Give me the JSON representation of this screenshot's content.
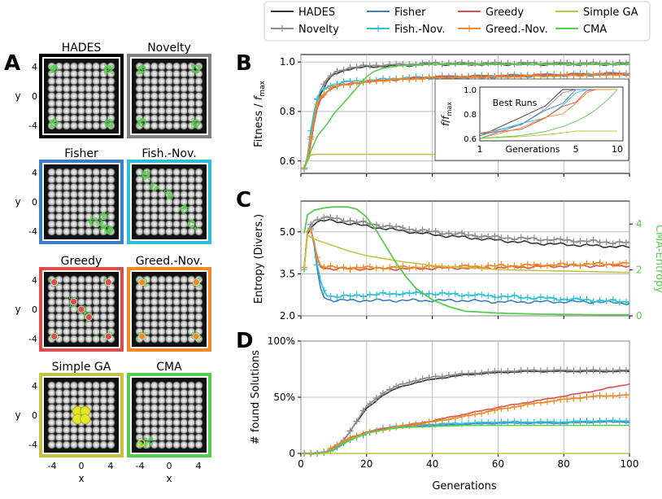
{
  "panel_letters": {
    "a": "A",
    "b": "B",
    "c": "C",
    "d": "D"
  },
  "legend": [
    {
      "name": "HADES",
      "color": "#333333",
      "marker": "none"
    },
    {
      "name": "Novelty",
      "color": "#8c8c8c",
      "marker": "plus"
    },
    {
      "name": "Fisher",
      "color": "#3d7fc1",
      "marker": "none"
    },
    {
      "name": "Fish.-Nov.",
      "color": "#2ec0d6",
      "marker": "plus"
    },
    {
      "name": "Greedy",
      "color": "#d9504e",
      "marker": "none"
    },
    {
      "name": "Greed.-Nov.",
      "color": "#f08a26",
      "marker": "plus"
    },
    {
      "name": "Simple GA",
      "color": "#c5c244",
      "marker": "none"
    },
    {
      "name": "CMA",
      "color": "#58cc4f",
      "marker": "none"
    }
  ],
  "heatmaps": {
    "tiles": [
      {
        "title": "HADES",
        "border": "#000000",
        "clusters": "corners"
      },
      {
        "title": "Novelty",
        "border": "#808080",
        "clusters": "corners"
      },
      {
        "title": "Fisher",
        "border": "#3d7fc1",
        "clusters": "br-path"
      },
      {
        "title": "Fish.-Nov.",
        "border": "#2ec0d6",
        "clusters": "diag"
      },
      {
        "title": "Greedy",
        "border": "#d9504e",
        "clusters": "scatter"
      },
      {
        "title": "Greed.-Nov.",
        "border": "#f08a26",
        "clusters": "corners"
      },
      {
        "title": "Simple GA",
        "border": "#c5c244",
        "clusters": "center"
      },
      {
        "title": "CMA",
        "border": "#58cc4f",
        "clusters": "bl"
      }
    ],
    "xlabel": "x",
    "ylabel": "y",
    "ticks": [
      "4",
      "0",
      "-4"
    ],
    "xticks": [
      "-4",
      "0",
      "4"
    ]
  },
  "chart_data": [
    {
      "type": "line",
      "panel": "B",
      "ylabel": "Fitness / f_max",
      "xlim": [
        0,
        100
      ],
      "ylim": [
        0.55,
        1.03
      ],
      "yticks": [
        0.6,
        0.8,
        1.0
      ],
      "series": [
        {
          "name": "HADES",
          "x": [
            1,
            2,
            3,
            4,
            5,
            6,
            8,
            10,
            14,
            20,
            30,
            40,
            60,
            80,
            100
          ],
          "values": [
            0.57,
            0.6,
            0.68,
            0.76,
            0.82,
            0.87,
            0.92,
            0.95,
            0.97,
            0.98,
            0.985,
            0.99,
            0.99,
            0.99,
            0.99
          ]
        },
        {
          "name": "Novelty",
          "x": [
            1,
            2,
            3,
            4,
            5,
            6,
            8,
            10,
            14,
            20,
            30,
            40,
            60,
            80,
            100
          ],
          "values": [
            0.57,
            0.61,
            0.7,
            0.79,
            0.85,
            0.89,
            0.93,
            0.955,
            0.975,
            0.985,
            0.99,
            0.995,
            0.995,
            0.995,
            0.995
          ]
        },
        {
          "name": "Fisher",
          "x": [
            1,
            2,
            3,
            4,
            5,
            6,
            8,
            10,
            14,
            20,
            30,
            40,
            60,
            80,
            100
          ],
          "values": [
            0.57,
            0.6,
            0.68,
            0.76,
            0.82,
            0.86,
            0.88,
            0.9,
            0.91,
            0.92,
            0.93,
            0.935,
            0.94,
            0.945,
            0.95
          ]
        },
        {
          "name": "Fish.-Nov.",
          "x": [
            1,
            2,
            3,
            4,
            5,
            6,
            8,
            10,
            14,
            20,
            30,
            40,
            60,
            80,
            100
          ],
          "values": [
            0.57,
            0.62,
            0.72,
            0.8,
            0.85,
            0.88,
            0.9,
            0.91,
            0.92,
            0.925,
            0.935,
            0.94,
            0.945,
            0.95,
            0.955
          ]
        },
        {
          "name": "Greedy",
          "x": [
            1,
            2,
            3,
            4,
            5,
            6,
            8,
            10,
            14,
            20,
            30,
            40,
            60,
            80,
            100
          ],
          "values": [
            0.57,
            0.6,
            0.67,
            0.75,
            0.81,
            0.85,
            0.88,
            0.9,
            0.91,
            0.92,
            0.93,
            0.94,
            0.945,
            0.95,
            0.955
          ]
        },
        {
          "name": "Greed.-Nov.",
          "x": [
            1,
            2,
            3,
            4,
            5,
            6,
            8,
            10,
            14,
            20,
            30,
            40,
            60,
            80,
            100
          ],
          "values": [
            0.57,
            0.61,
            0.69,
            0.77,
            0.83,
            0.86,
            0.88,
            0.9,
            0.91,
            0.92,
            0.93,
            0.935,
            0.94,
            0.945,
            0.95
          ]
        },
        {
          "name": "Simple GA",
          "x": [
            1,
            2,
            3,
            5,
            10,
            30,
            60,
            100
          ],
          "values": [
            0.57,
            0.6,
            0.625,
            0.627,
            0.627,
            0.627,
            0.627,
            0.627
          ]
        },
        {
          "name": "CMA",
          "x": [
            1,
            2,
            3,
            5,
            8,
            10,
            12,
            14,
            16,
            18,
            20,
            22,
            25,
            30,
            40,
            60,
            100
          ],
          "values": [
            0.57,
            0.6,
            0.64,
            0.7,
            0.75,
            0.79,
            0.82,
            0.85,
            0.88,
            0.91,
            0.94,
            0.96,
            0.975,
            0.985,
            0.99,
            0.99,
            0.99
          ]
        }
      ]
    },
    {
      "type": "line",
      "panel": "B-inset",
      "title": "Best Runs",
      "xlabel": "Generations",
      "ylabel": "f/f_max",
      "xscale": "log",
      "xlim": [
        1,
        11
      ],
      "ylim": [
        0.58,
        1.02
      ],
      "xticks": [
        1,
        5,
        10
      ],
      "yticks": [
        0.6,
        0.8,
        1.0
      ]
    },
    {
      "type": "line",
      "panel": "C",
      "ylabel": "Entropy (Divers.)",
      "ylabel_right": "CMA-Entropy",
      "xlim": [
        0,
        100
      ],
      "ylim": [
        2.0,
        6.1
      ],
      "yticks": [
        2.0,
        3.5,
        5.0
      ],
      "ylim_right": [
        0,
        5
      ],
      "yticks_right": [
        0,
        2,
        4
      ],
      "series": [
        {
          "name": "HADES",
          "x": [
            1,
            2,
            3,
            4,
            5,
            6,
            8,
            10,
            15,
            20,
            30,
            40,
            50,
            60,
            70,
            80,
            90,
            100
          ],
          "values": [
            3.7,
            4.9,
            5.2,
            5.3,
            5.35,
            5.4,
            5.4,
            5.38,
            5.3,
            5.2,
            5.05,
            4.9,
            4.8,
            4.7,
            4.6,
            4.55,
            4.5,
            4.45
          ]
        },
        {
          "name": "Novelty",
          "x": [
            1,
            2,
            3,
            4,
            5,
            6,
            8,
            10,
            15,
            20,
            30,
            40,
            50,
            60,
            70,
            80,
            90,
            100
          ],
          "values": [
            3.7,
            5.0,
            5.3,
            5.4,
            5.45,
            5.5,
            5.5,
            5.48,
            5.4,
            5.3,
            5.15,
            5.0,
            4.9,
            4.8,
            4.75,
            4.7,
            4.65,
            4.6
          ]
        },
        {
          "name": "Fisher",
          "x": [
            1,
            2,
            3,
            4,
            5,
            6,
            7,
            8,
            10,
            15,
            20,
            30,
            40,
            50,
            60,
            70,
            80,
            90,
            100
          ],
          "values": [
            3.7,
            5.0,
            5.1,
            4.5,
            3.6,
            3.0,
            2.7,
            2.6,
            2.55,
            2.55,
            2.55,
            2.55,
            2.55,
            2.55,
            2.5,
            2.5,
            2.5,
            2.5,
            2.45
          ]
        },
        {
          "name": "Fish.-Nov.",
          "x": [
            1,
            2,
            3,
            4,
            5,
            6,
            7,
            8,
            10,
            15,
            20,
            30,
            40,
            50,
            60,
            70,
            80,
            90,
            100
          ],
          "values": [
            3.7,
            5.0,
            5.1,
            4.6,
            3.8,
            3.2,
            2.9,
            2.75,
            2.7,
            2.7,
            2.75,
            2.8,
            2.8,
            2.75,
            2.7,
            2.65,
            2.6,
            2.55,
            2.5
          ]
        },
        {
          "name": "Greedy",
          "x": [
            1,
            2,
            3,
            4,
            5,
            6,
            8,
            10,
            15,
            20,
            30,
            40,
            60,
            80,
            100
          ],
          "values": [
            3.7,
            5.0,
            5.1,
            4.6,
            4.0,
            3.75,
            3.7,
            3.68,
            3.68,
            3.68,
            3.68,
            3.7,
            3.72,
            3.78,
            3.8
          ]
        },
        {
          "name": "Greed.-Nov.",
          "x": [
            1,
            2,
            3,
            4,
            5,
            6,
            8,
            10,
            15,
            20,
            30,
            40,
            60,
            80,
            100
          ],
          "values": [
            3.7,
            5.0,
            5.1,
            4.7,
            4.1,
            3.8,
            3.75,
            3.72,
            3.72,
            3.72,
            3.73,
            3.75,
            3.78,
            3.83,
            3.87
          ]
        },
        {
          "name": "Simple GA",
          "x": [
            1,
            2,
            3,
            5,
            10,
            15,
            20,
            30,
            40,
            60,
            80,
            100
          ],
          "values": [
            3.7,
            4.9,
            4.8,
            4.7,
            4.5,
            4.3,
            4.15,
            3.95,
            3.8,
            3.65,
            3.6,
            3.55
          ]
        }
      ],
      "series_right": [
        {
          "name": "CMA",
          "x": [
            1,
            2,
            4,
            7,
            10,
            14,
            17,
            20,
            23,
            26,
            29,
            32,
            35,
            40,
            45,
            50,
            60,
            70,
            80,
            90,
            100
          ],
          "values": [
            3.6,
            4.4,
            4.6,
            4.7,
            4.75,
            4.75,
            4.65,
            4.3,
            3.7,
            3.0,
            2.3,
            1.7,
            1.2,
            0.7,
            0.4,
            0.2,
            0.12,
            0.08,
            0.06,
            0.05,
            0.05
          ]
        }
      ]
    },
    {
      "type": "line",
      "panel": "D",
      "xlabel": "Generations",
      "ylabel": "# found Solutions",
      "xlim": [
        0,
        100
      ],
      "ylim": [
        0,
        100
      ],
      "yticks": [
        "0",
        "50%",
        "100%"
      ],
      "xticks": [
        0,
        20,
        40,
        60,
        80,
        100
      ],
      "series": [
        {
          "name": "HADES",
          "x": [
            1,
            5,
            8,
            10,
            12,
            15,
            20,
            25,
            30,
            35,
            40,
            50,
            60,
            70,
            80,
            90,
            100
          ],
          "values": [
            0,
            0,
            1,
            3,
            8,
            20,
            40,
            52,
            59,
            63,
            66,
            70,
            72,
            73,
            73,
            73,
            73
          ]
        },
        {
          "name": "Novelty",
          "x": [
            1,
            5,
            8,
            10,
            12,
            15,
            20,
            25,
            30,
            35,
            40,
            50,
            60,
            70,
            80,
            90,
            100
          ],
          "values": [
            0,
            0,
            1,
            3,
            8,
            20,
            42,
            54,
            61,
            65,
            68,
            71,
            73,
            74,
            74,
            74,
            74
          ]
        },
        {
          "name": "Fisher",
          "x": [
            1,
            5,
            8,
            10,
            15,
            20,
            25,
            30,
            40,
            50,
            60,
            70,
            80,
            90,
            100
          ],
          "values": [
            0,
            0,
            2,
            6,
            14,
            19,
            22,
            24,
            25,
            26,
            27,
            27,
            27,
            28,
            28
          ]
        },
        {
          "name": "Fish.-Nov.",
          "x": [
            1,
            5,
            8,
            10,
            15,
            20,
            25,
            30,
            40,
            50,
            60,
            70,
            80,
            90,
            100
          ],
          "values": [
            0,
            0,
            2,
            5,
            12,
            18,
            22,
            25,
            26,
            27,
            28,
            28,
            28,
            29,
            29
          ]
        },
        {
          "name": "Greedy",
          "x": [
            1,
            5,
            8,
            10,
            15,
            20,
            25,
            30,
            40,
            50,
            60,
            70,
            80,
            90,
            100
          ],
          "values": [
            0,
            0,
            2,
            6,
            14,
            19,
            22,
            24,
            29,
            35,
            41,
            46,
            51,
            56,
            62
          ]
        },
        {
          "name": "Greed.-Nov.",
          "x": [
            1,
            5,
            8,
            10,
            15,
            20,
            25,
            30,
            40,
            50,
            60,
            70,
            80,
            90,
            100
          ],
          "values": [
            0,
            0,
            2,
            6,
            14,
            18,
            21,
            24,
            28,
            33,
            39,
            44,
            48,
            51,
            52
          ]
        },
        {
          "name": "Simple GA",
          "x": [
            1,
            100
          ],
          "values": [
            0,
            0
          ]
        },
        {
          "name": "CMA",
          "x": [
            1,
            5,
            10,
            15,
            20,
            25,
            30,
            40,
            50,
            60,
            80,
            100
          ],
          "values": [
            0,
            0,
            3,
            12,
            18,
            21,
            23,
            24,
            25,
            25,
            25,
            25
          ]
        }
      ]
    }
  ]
}
